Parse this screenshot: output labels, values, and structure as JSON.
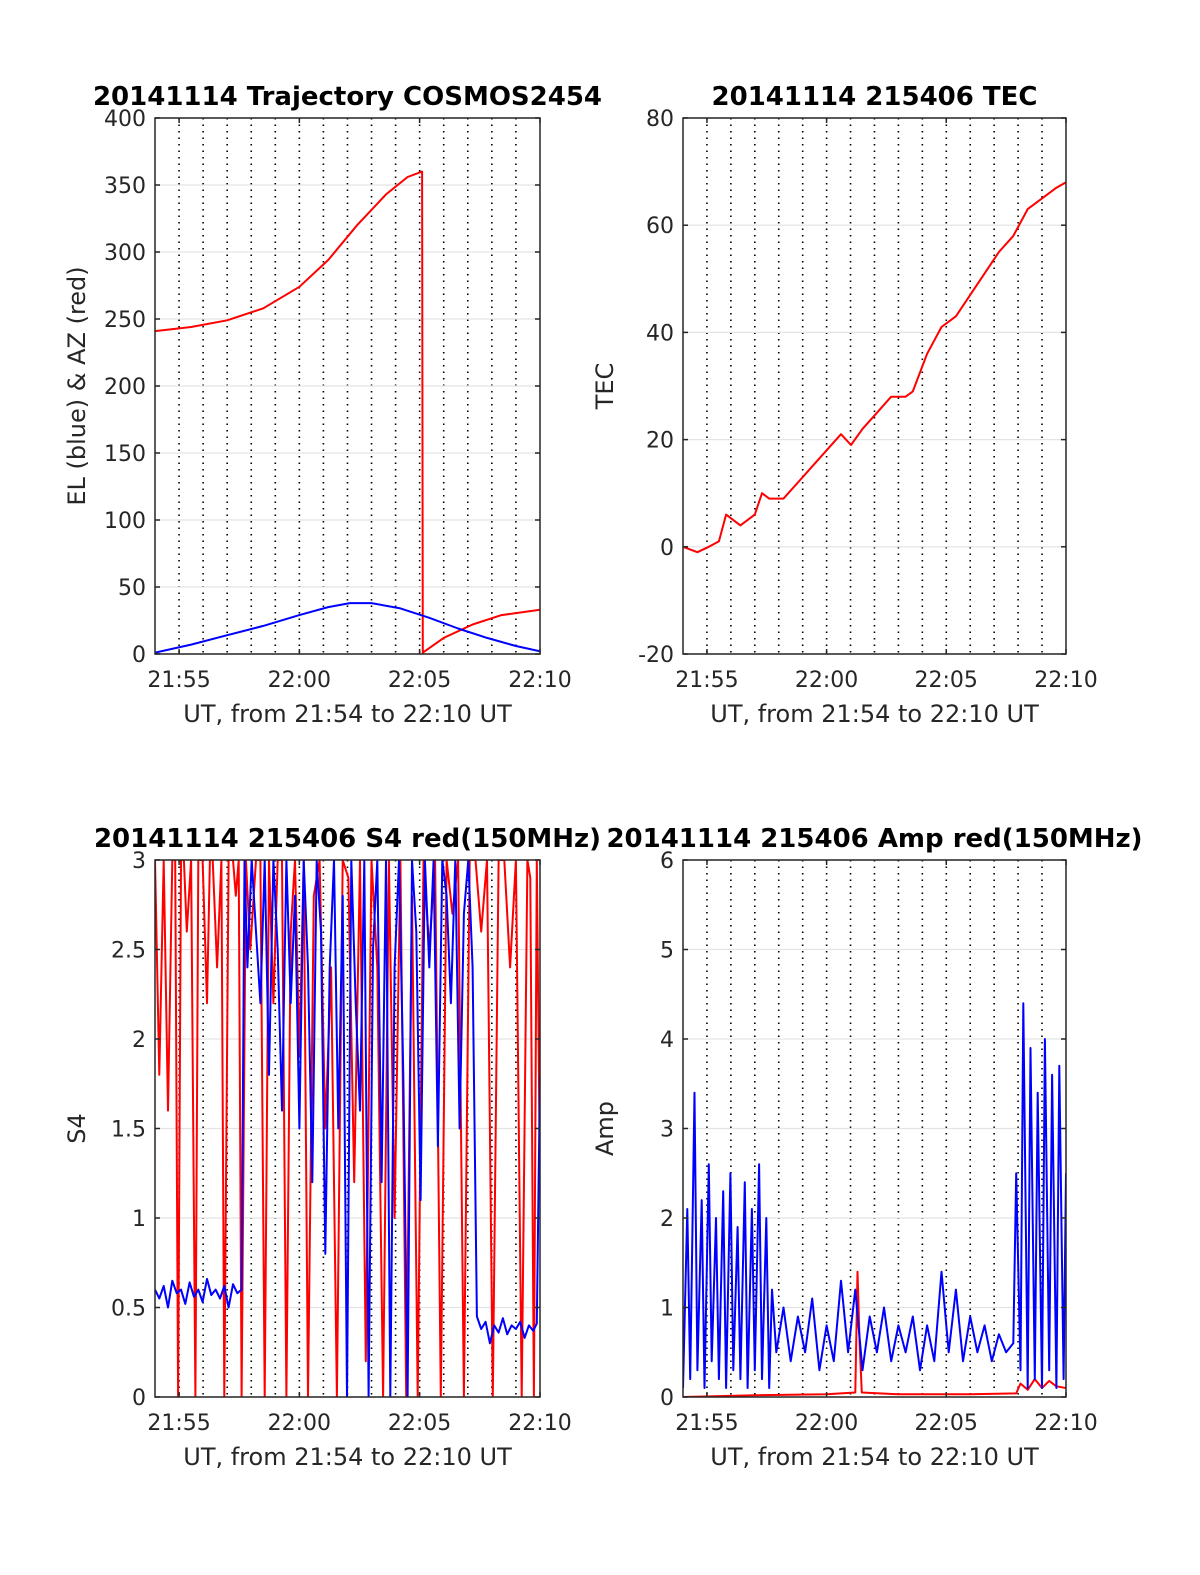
{
  "chart_data": [
    {
      "type": "line",
      "title": "20141114 Trajectory COSMOS2454",
      "xlabel": "UT, from 21:54 to 22:10 UT",
      "ylabel": "EL (blue) & AZ (red)",
      "xlim": [
        21.9,
        22.1667
      ],
      "ylim": [
        0,
        400
      ],
      "xticks": [
        21.9167,
        22.0,
        22.0833,
        22.1667
      ],
      "xtick_labels": [
        "21:55",
        "22:00",
        "22:05",
        "22:10"
      ],
      "yticks": [
        0,
        50,
        100,
        150,
        200,
        250,
        300,
        350,
        400
      ],
      "ytick_labels": [
        "0",
        "50",
        "100",
        "150",
        "200",
        "250",
        "300",
        "350",
        "400"
      ],
      "grid": "horizontal solid, vertical dotted every minute",
      "series": [
        {
          "color": "#ff0000",
          "x": [
            21.9,
            21.925,
            21.95,
            21.975,
            22.0,
            22.02,
            22.04,
            22.06,
            22.075,
            22.085,
            22.0855,
            22.1,
            22.12,
            22.14,
            22.1667
          ],
          "y": [
            241,
            244,
            249,
            258,
            274,
            294,
            320,
            343,
            356,
            360,
            1,
            12,
            22,
            29,
            33
          ]
        },
        {
          "color": "#0000ff",
          "x": [
            21.9,
            21.925,
            21.95,
            21.975,
            22.0,
            22.02,
            22.035,
            22.05,
            22.07,
            22.09,
            22.11,
            22.13,
            22.15,
            22.1667
          ],
          "y": [
            1,
            7,
            14,
            21,
            29,
            35,
            38,
            38,
            34,
            27,
            19,
            12,
            6,
            2
          ]
        }
      ]
    },
    {
      "type": "line",
      "title": "20141114 215406 TEC",
      "xlabel": "UT, from 21:54 to 22:10 UT",
      "ylabel": "TEC",
      "xlim": [
        21.9,
        22.1667
      ],
      "ylim": [
        -20,
        80
      ],
      "xticks": [
        21.9167,
        22.0,
        22.0833,
        22.1667
      ],
      "xtick_labels": [
        "21:55",
        "22:00",
        "22:05",
        "22:10"
      ],
      "yticks": [
        -20,
        0,
        20,
        40,
        60,
        80
      ],
      "ytick_labels": [
        "-20",
        "0",
        "20",
        "40",
        "60",
        "80"
      ],
      "grid": "horizontal solid, vertical dotted every minute",
      "series": [
        {
          "color": "#ff0000",
          "x": [
            21.9,
            21.91,
            21.918,
            21.925,
            21.93,
            21.94,
            21.95,
            21.955,
            21.96,
            21.97,
            21.98,
            21.99,
            22.0,
            22.01,
            22.017,
            22.025,
            22.035,
            22.045,
            22.055,
            22.06,
            22.07,
            22.08,
            22.09,
            22.1,
            22.11,
            22.12,
            22.13,
            22.14,
            22.15,
            22.16,
            22.1667
          ],
          "y": [
            0,
            -1,
            0,
            1,
            6,
            4,
            6,
            10,
            9,
            9,
            12,
            15,
            18,
            21,
            19,
            22,
            25,
            28,
            28,
            29,
            36,
            41,
            43,
            47,
            51,
            55,
            58,
            63,
            65,
            67,
            68
          ]
        }
      ]
    },
    {
      "type": "line",
      "title": "20141114 215406 S4 red(150MHz)",
      "xlabel": "UT, from 21:54 to 22:10 UT",
      "ylabel": "S4",
      "xlim": [
        21.9,
        22.1667
      ],
      "ylim": [
        0,
        3
      ],
      "xticks": [
        21.9167,
        22.0,
        22.0833,
        22.1667
      ],
      "xtick_labels": [
        "21:55",
        "22:00",
        "22:05",
        "22:10"
      ],
      "yticks": [
        0,
        0.5,
        1,
        1.5,
        2,
        2.5,
        3
      ],
      "ytick_labels": [
        "0",
        "0.5",
        "1",
        "1.5",
        "2",
        "2.5",
        "3"
      ],
      "grid": "horizontal solid, vertical dotted every minute",
      "series": [
        {
          "color": "#ff0000",
          "x": [
            21.9,
            21.903,
            21.906,
            21.909,
            21.912,
            21.914,
            21.916,
            21.918,
            21.92,
            21.922,
            21.925,
            21.928,
            21.93,
            21.933,
            21.936,
            21.938,
            21.94,
            21.943,
            21.946,
            21.948,
            21.951,
            21.954,
            21.956,
            21.958,
            21.96,
            21.963,
            21.966,
            21.97,
            21.973,
            21.976,
            21.979,
            21.982,
            21.985,
            21.988,
            21.991,
            21.994,
            21.997,
            22.0,
            22.003,
            22.006,
            22.01,
            22.014,
            22.018,
            22.022,
            22.026,
            22.03,
            22.034,
            22.038,
            22.042,
            22.046,
            22.05,
            22.054,
            22.058,
            22.062,
            22.066,
            22.07,
            22.074,
            22.078,
            22.082,
            22.086,
            22.09,
            22.094,
            22.098,
            22.102,
            22.106,
            22.11,
            22.114,
            22.118,
            22.122,
            22.126,
            22.13,
            22.134,
            22.138,
            22.142,
            22.146,
            22.15,
            22.154,
            22.158,
            22.16,
            22.1625,
            22.1645,
            22.1667
          ],
          "y": [
            3,
            1.8,
            3,
            1.6,
            3,
            3,
            0,
            3,
            3,
            2.6,
            3,
            0,
            3,
            3,
            2.2,
            3,
            3,
            2.4,
            3,
            0,
            3,
            3,
            2.8,
            3,
            0,
            3,
            2.5,
            3,
            3,
            0,
            3,
            2.2,
            3,
            3,
            0,
            2.6,
            3,
            1.9,
            3,
            0,
            2.8,
            3,
            1.5,
            2.4,
            0,
            3,
            2.9,
            1.2,
            3,
            0.2,
            3,
            2.4,
            0,
            3,
            1.0,
            3,
            0,
            2.8,
            0,
            3,
            2.5,
            3,
            0,
            3,
            2.7,
            3,
            0,
            3,
            3,
            2.6,
            3,
            0,
            3,
            3,
            2.4,
            3,
            0,
            3,
            2.9,
            0,
            3,
            1.2
          ]
        },
        {
          "color": "#0000ff",
          "x": [
            21.9,
            21.903,
            21.906,
            21.909,
            21.912,
            21.915,
            21.918,
            21.921,
            21.924,
            21.927,
            21.93,
            21.933,
            21.936,
            21.939,
            21.942,
            21.945,
            21.948,
            21.951,
            21.954,
            21.957,
            21.96,
            21.962,
            21.964,
            21.967,
            21.97,
            21.973,
            21.976,
            21.979,
            21.982,
            21.985,
            21.988,
            21.991,
            21.994,
            21.997,
            22.0,
            22.003,
            22.006,
            22.009,
            22.012,
            22.015,
            22.018,
            22.021,
            22.024,
            22.027,
            22.03,
            22.033,
            22.036,
            22.039,
            22.042,
            22.045,
            22.048,
            22.051,
            22.054,
            22.057,
            22.06,
            22.063,
            22.066,
            22.069,
            22.072,
            22.075,
            22.078,
            22.081,
            22.084,
            22.087,
            22.09,
            22.093,
            22.096,
            22.099,
            22.102,
            22.105,
            22.108,
            22.111,
            22.114,
            22.117,
            22.12,
            22.123,
            22.126,
            22.129,
            22.132,
            22.135,
            22.138,
            22.141,
            22.144,
            22.147,
            22.15,
            22.153,
            22.156,
            22.159,
            22.162,
            22.1645,
            22.1667
          ],
          "y": [
            0.6,
            0.55,
            0.62,
            0.5,
            0.65,
            0.58,
            0.6,
            0.52,
            0.64,
            0.56,
            0.6,
            0.53,
            0.66,
            0.57,
            0.6,
            0.55,
            0.62,
            0.5,
            0.63,
            0.58,
            0.6,
            3,
            2.4,
            3,
            2.6,
            2.2,
            3,
            1.8,
            3,
            2.5,
            1.6,
            3,
            2.2,
            2.8,
            1.5,
            3,
            2.4,
            1.2,
            3,
            2.6,
            0.8,
            2.4,
            3,
            1.5,
            2.8,
            0,
            3,
            2.2,
            1.6,
            3,
            0,
            2.5,
            3,
            1.2,
            3,
            0,
            2.4,
            3,
            1.8,
            0,
            3,
            2.6,
            1.1,
            3,
            2.4,
            3,
            1.4,
            3,
            2.8,
            2.2,
            3,
            1.5,
            2.7,
            3,
            2.4,
            0.45,
            0.38,
            0.42,
            0.3,
            0.4,
            0.36,
            0.44,
            0.35,
            0.4,
            0.38,
            0.42,
            0.33,
            0.4,
            0.37,
            0.41,
            1.8
          ]
        }
      ]
    },
    {
      "type": "line",
      "title": "20141114 215406 Amp red(150MHz)",
      "xlabel": "UT, from 21:54 to 22:10 UT",
      "ylabel": "Amp",
      "xlim": [
        21.9,
        22.1667
      ],
      "ylim": [
        0,
        6
      ],
      "xticks": [
        21.9167,
        22.0,
        22.0833,
        22.1667
      ],
      "xtick_labels": [
        "21:55",
        "22:00",
        "22:05",
        "22:10"
      ],
      "yticks": [
        0,
        1,
        2,
        3,
        4,
        5,
        6
      ],
      "ytick_labels": [
        "0",
        "1",
        "2",
        "3",
        "4",
        "5",
        "6"
      ],
      "grid": "horizontal solid, vertical dotted every minute",
      "series": [
        {
          "color": "#ff0000",
          "x": [
            21.9,
            21.95,
            22.0,
            22.02,
            22.0215,
            22.023,
            22.0245,
            22.05,
            22.1,
            22.132,
            22.135,
            22.14,
            22.145,
            22.15,
            22.155,
            22.16,
            22.1667
          ],
          "y": [
            0,
            0.02,
            0.03,
            0.05,
            1.4,
            0.6,
            0.05,
            0.03,
            0.03,
            0.04,
            0.15,
            0.08,
            0.2,
            0.1,
            0.18,
            0.12,
            0.1
          ]
        },
        {
          "color": "#0000ff",
          "x": [
            21.9,
            21.903,
            21.905,
            21.908,
            21.91,
            21.913,
            21.915,
            21.918,
            21.92,
            21.923,
            21.925,
            21.928,
            21.93,
            21.933,
            21.935,
            21.938,
            21.94,
            21.943,
            21.945,
            21.948,
            21.95,
            21.953,
            21.955,
            21.958,
            21.96,
            21.962,
            21.965,
            21.97,
            21.975,
            21.98,
            21.985,
            21.99,
            21.995,
            22.0,
            22.005,
            22.01,
            22.015,
            22.02,
            22.025,
            22.03,
            22.035,
            22.04,
            22.045,
            22.05,
            22.055,
            22.06,
            22.065,
            22.07,
            22.075,
            22.08,
            22.085,
            22.09,
            22.095,
            22.1,
            22.105,
            22.11,
            22.115,
            22.12,
            22.125,
            22.13,
            22.132,
            22.135,
            22.137,
            22.14,
            22.142,
            22.145,
            22.147,
            22.15,
            22.152,
            22.155,
            22.157,
            22.16,
            22.162,
            22.165,
            22.1667
          ],
          "y": [
            0.1,
            2.1,
            0.2,
            3.4,
            0.3,
            2.2,
            0.1,
            2.6,
            0.4,
            2.0,
            0.2,
            2.3,
            0.1,
            2.5,
            0.3,
            1.9,
            0.2,
            2.4,
            0.1,
            2.1,
            0.3,
            2.6,
            0.2,
            2.0,
            0.1,
            1.2,
            0.5,
            1.0,
            0.4,
            0.9,
            0.5,
            1.1,
            0.3,
            0.8,
            0.4,
            1.3,
            0.5,
            1.2,
            0.3,
            0.9,
            0.5,
            1.0,
            0.4,
            0.8,
            0.5,
            0.9,
            0.3,
            0.8,
            0.4,
            1.4,
            0.5,
            1.2,
            0.4,
            0.9,
            0.5,
            0.8,
            0.4,
            0.7,
            0.5,
            0.6,
            2.5,
            0.3,
            4.4,
            0.1,
            3.9,
            0.2,
            3.4,
            0.1,
            4.0,
            0.3,
            3.6,
            0.1,
            3.7,
            0.2,
            2.5
          ]
        }
      ]
    }
  ]
}
